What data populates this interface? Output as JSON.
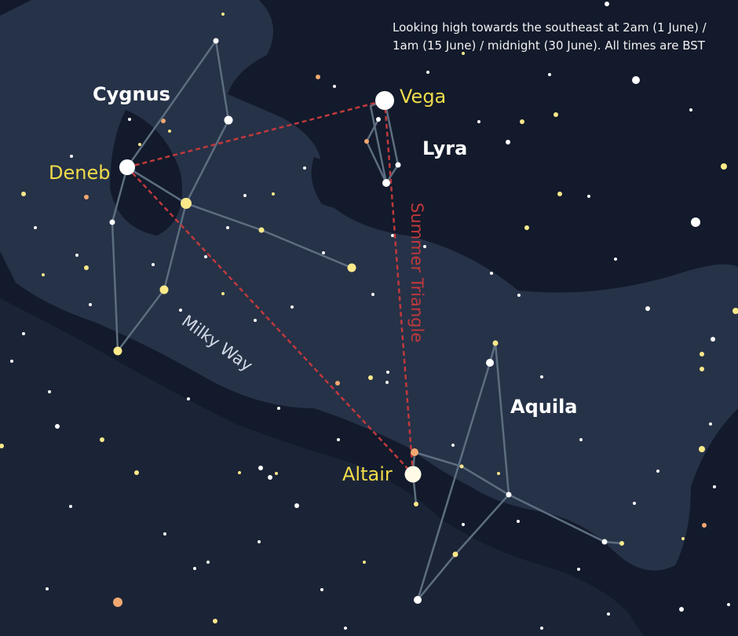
{
  "caption": "Looking high towards the southeast at 2am (1 June) / 1am (15 June) / midnight (30 June). All times are BST",
  "colors": {
    "sky": "#121a2b",
    "milky_way": "#263248",
    "constellation_line": "#5d6e80",
    "triangle_line": "#c0393b",
    "star_name": "#f0dc4a",
    "constellation_name": "#ffffff"
  },
  "constellations": {
    "cygnus": "Cygnus",
    "lyra": "Lyra",
    "aquila": "Aquila"
  },
  "stars": {
    "deneb": "Deneb",
    "vega": "Vega",
    "altair": "Altair"
  },
  "milky_way_label": "Milky Way",
  "asterism_label": "Summer Triangle"
}
